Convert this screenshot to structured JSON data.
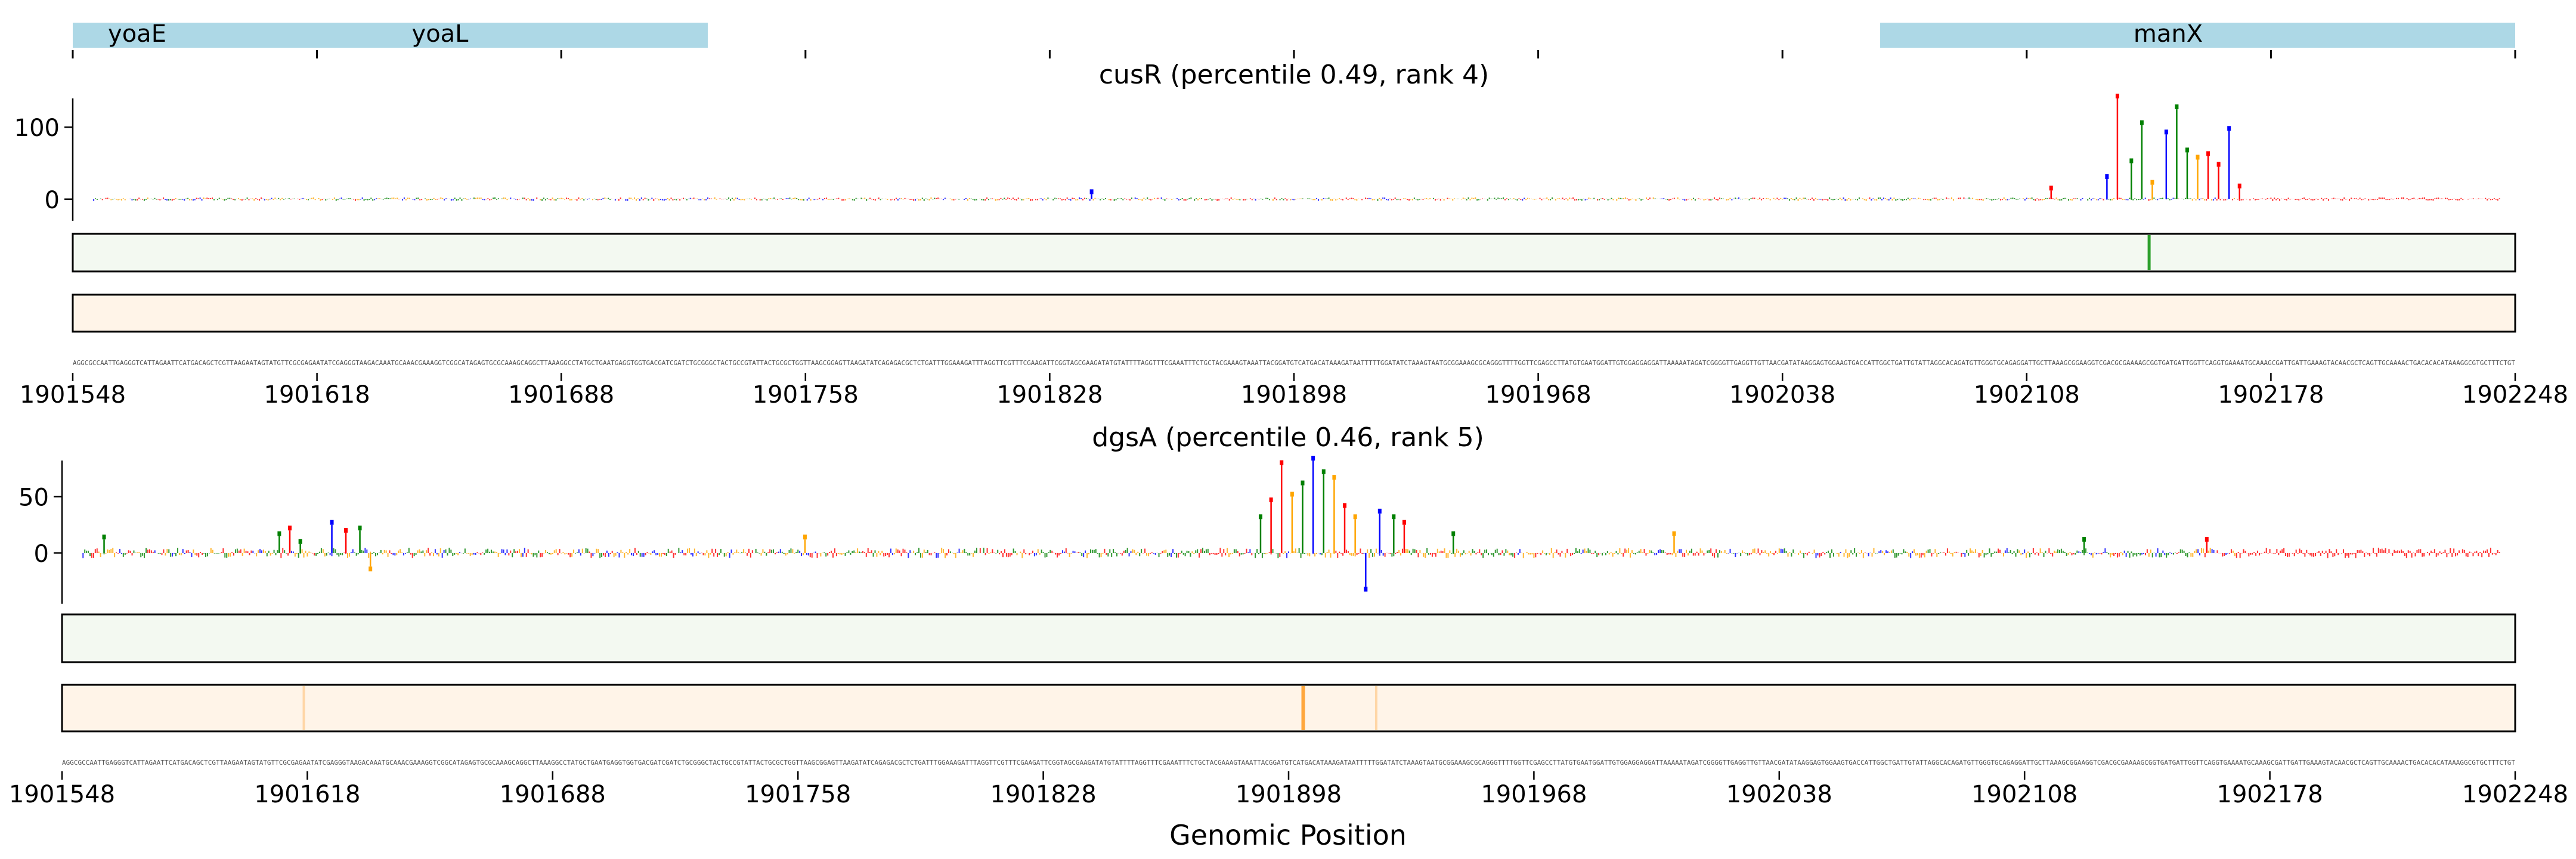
{
  "chart_data": {
    "type": "bar",
    "xlabel": "Genomic Position",
    "xlim": [
      1901548,
      1902248
    ],
    "xticks": [
      1901548,
      1901618,
      1901688,
      1901758,
      1901828,
      1901898,
      1901968,
      1902038,
      1902108,
      1902178,
      1902248
    ],
    "genes": [
      {
        "name": "yoaE",
        "start": 1901548,
        "end": 1901730
      },
      {
        "name": "yoaL",
        "start": 1901548,
        "end": 1901730
      },
      {
        "name": "manX",
        "start": 1902066,
        "end": 1902248
      }
    ],
    "nucleotide_colors": {
      "A": "#008000",
      "C": "#0000ff",
      "G": "#ffa500",
      "T": "#ff0000"
    },
    "colors": {
      "gene": "#add8e6",
      "green_track": "#2ca02c",
      "orange_track": "#ff9f2a"
    },
    "sequence": "AGGCGCCAATTGAGGGTCATTAGAATTCATGACAGCTCGTTAAGAATAGTATGTTCGCGAGAATATCGAGGGTAAGACAAATGCAAACGAAAGGTCGGCATAGAGTGCGCAAAGCAGGCTTAAAGGCCTATGCTGAATGAGGTGGTGACGATCGATCTGCGGGCTACTGCCGTATTACTGCGCTGGTTAAGCGGAGTTAAGATATCAGAGACGCTCTGATTTGGAAAGATTTAGGTTCGTTTCGAAGATTCGGTAGCGAAGATATGTATTTTAGGTTTCGAAATTTCTGCTACGAAAGTAAATTACGGATGTCATGACATAAAGATAATTTTTGGATATCTAAAGTAATGCGGAAAGCGCAGGGTTTTGGTTCGAGCCTTATGTGAATGGATTGTGGAGGAGGATTAAAAATAGATCGGGGTTGAGGTTGTTAACGATATAAGGAGTGGAAGTGACCATTGGCTGATTGTATTAGGCACAGATGTTGGGTGCAGAGGATTGCTTAAAGCGGAAGGTCGACGCGAAAAGCGGTGATGATTGGTTCAGGTGAAAATGCAAAGCGATTGATTGAAAGTACAACGCTCAGTTGCAAAACTGACACACATAAAGGCGTGCTTTCTGT",
    "tracks": [
      {
        "title": "cusR (percentile 0.49, rank 4)",
        "ylim": [
          -30,
          140
        ],
        "yticks": [
          0,
          100
        ],
        "peaks": [
          {
            "pos": 1901840,
            "value": 7
          },
          {
            "pos": 1902115,
            "value": 12
          },
          {
            "pos": 1902131,
            "value": 28
          },
          {
            "pos": 1902134,
            "value": 140
          },
          {
            "pos": 1902138,
            "value": 50
          },
          {
            "pos": 1902141,
            "value": 103
          },
          {
            "pos": 1902144,
            "value": 20
          },
          {
            "pos": 1902148,
            "value": 90
          },
          {
            "pos": 1902151,
            "value": 125
          },
          {
            "pos": 1902154,
            "value": 65
          },
          {
            "pos": 1902157,
            "value": 55
          },
          {
            "pos": 1902160,
            "value": 60
          },
          {
            "pos": 1902163,
            "value": 45
          },
          {
            "pos": 1902166,
            "value": 95
          },
          {
            "pos": 1902169,
            "value": 15
          }
        ],
        "green_highlights": [
          1902143
        ],
        "orange_highlights": []
      },
      {
        "title": "dgsA (percentile 0.46, rank 5)",
        "ylim": [
          -45,
          82
        ],
        "yticks": [
          0,
          50
        ],
        "peaks": [
          {
            "pos": 1901560,
            "value": 12
          },
          {
            "pos": 1901610,
            "value": 15
          },
          {
            "pos": 1901613,
            "value": 20
          },
          {
            "pos": 1901616,
            "value": 8
          },
          {
            "pos": 1901625,
            "value": 25
          },
          {
            "pos": 1901629,
            "value": 18
          },
          {
            "pos": 1901633,
            "value": 20
          },
          {
            "pos": 1901636,
            "value": -12
          },
          {
            "pos": 1901760,
            "value": 12
          },
          {
            "pos": 1901890,
            "value": 30
          },
          {
            "pos": 1901893,
            "value": 45
          },
          {
            "pos": 1901896,
            "value": 78
          },
          {
            "pos": 1901899,
            "value": 50
          },
          {
            "pos": 1901902,
            "value": 60
          },
          {
            "pos": 1901905,
            "value": 82
          },
          {
            "pos": 1901908,
            "value": 70
          },
          {
            "pos": 1901911,
            "value": 65
          },
          {
            "pos": 1901914,
            "value": 40
          },
          {
            "pos": 1901917,
            "value": 30
          },
          {
            "pos": 1901920,
            "value": -30
          },
          {
            "pos": 1901924,
            "value": 35
          },
          {
            "pos": 1901928,
            "value": 30
          },
          {
            "pos": 1901931,
            "value": 25
          },
          {
            "pos": 1901945,
            "value": 15
          },
          {
            "pos": 1902008,
            "value": 15
          },
          {
            "pos": 1902125,
            "value": 10
          },
          {
            "pos": 1902160,
            "value": 10
          }
        ],
        "green_highlights": [],
        "orange_highlights": [
          1901617,
          1901902,
          1901923
        ]
      }
    ]
  }
}
